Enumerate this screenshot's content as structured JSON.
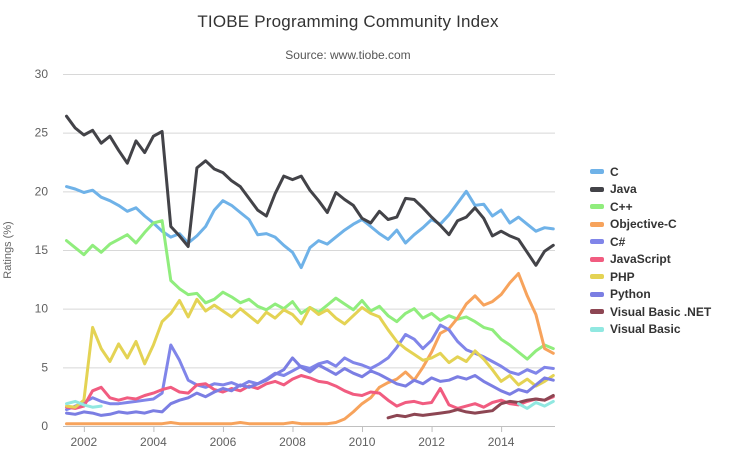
{
  "chart_data": {
    "type": "line",
    "title": "TIOBE Programming Community Index",
    "subtitle": "Source: www.tiobe.com",
    "xlabel": "",
    "ylabel": "Ratings (%)",
    "ylim": [
      0,
      30
    ],
    "xlim": [
      2001.4,
      2015.55
    ],
    "yticks": [
      0,
      5,
      10,
      15,
      20,
      25,
      30
    ],
    "xticks": [
      2002,
      2004,
      2006,
      2008,
      2010,
      2012,
      2014
    ],
    "grid": true,
    "legend_position": "right",
    "x": [
      2001.5,
      2001.75,
      2002,
      2002.25,
      2002.5,
      2002.75,
      2003,
      2003.25,
      2003.5,
      2003.75,
      2004,
      2004.25,
      2004.5,
      2004.75,
      2005,
      2005.25,
      2005.5,
      2005.75,
      2006,
      2006.25,
      2006.5,
      2006.75,
      2007,
      2007.25,
      2007.5,
      2007.75,
      2008,
      2008.25,
      2008.5,
      2008.75,
      2009,
      2009.25,
      2009.5,
      2009.75,
      2010,
      2010.25,
      2010.5,
      2010.75,
      2011,
      2011.25,
      2011.5,
      2011.75,
      2012,
      2012.25,
      2012.5,
      2012.75,
      2013,
      2013.25,
      2013.5,
      2013.75,
      2014,
      2014.25,
      2014.5,
      2014.75,
      2015,
      2015.25,
      2015.5
    ],
    "series": [
      {
        "name": "C",
        "color": "#6FB2E8",
        "values": [
          20.4,
          20.2,
          19.9,
          20.1,
          19.5,
          19.2,
          18.8,
          18.3,
          18.6,
          17.9,
          17.3,
          16.6,
          16.1,
          16.4,
          15.6,
          16.2,
          17.0,
          18.4,
          19.2,
          18.8,
          18.2,
          17.6,
          16.3,
          16.4,
          16.1,
          15.4,
          14.8,
          13.5,
          15.2,
          15.8,
          15.5,
          16.1,
          16.7,
          17.2,
          17.6,
          17.0,
          16.4,
          15.9,
          16.7,
          15.6,
          16.3,
          16.9,
          17.6,
          17.2,
          18.0,
          19.0,
          20.0,
          18.8,
          18.9,
          17.9,
          18.4,
          17.3,
          17.8,
          17.2,
          16.6,
          16.9,
          16.8
        ]
      },
      {
        "name": "Java",
        "color": "#434348",
        "values": [
          26.4,
          25.4,
          24.8,
          25.2,
          24.1,
          24.7,
          23.5,
          22.4,
          24.3,
          23.3,
          24.7,
          25.1,
          17.0,
          16.2,
          15.3,
          22.0,
          22.6,
          21.9,
          21.6,
          20.9,
          20.4,
          19.4,
          18.4,
          17.9,
          19.8,
          21.3,
          21.0,
          21.3,
          20.1,
          19.2,
          18.2,
          19.9,
          19.3,
          18.8,
          17.7,
          17.3,
          18.3,
          17.6,
          17.8,
          19.4,
          19.3,
          18.6,
          17.8,
          17.1,
          16.3,
          17.5,
          17.8,
          18.6,
          17.7,
          16.2,
          16.6,
          16.2,
          15.9,
          14.8,
          13.7,
          14.9,
          15.4
        ]
      },
      {
        "name": "C++",
        "color": "#90ED7D",
        "values": [
          15.8,
          15.2,
          14.6,
          15.4,
          14.8,
          15.5,
          15.9,
          16.3,
          15.6,
          16.5,
          17.3,
          17.5,
          12.4,
          11.7,
          11.2,
          11.3,
          10.5,
          10.8,
          11.4,
          11.0,
          10.5,
          10.8,
          10.2,
          9.9,
          10.4,
          10.0,
          10.6,
          9.6,
          10.1,
          9.7,
          10.3,
          10.9,
          10.4,
          9.9,
          10.7,
          9.8,
          10.2,
          9.4,
          8.9,
          9.6,
          10.0,
          9.2,
          9.6,
          9.0,
          9.4,
          9.1,
          9.3,
          8.9,
          8.4,
          8.2,
          7.4,
          6.9,
          6.3,
          5.7,
          6.4,
          6.9,
          6.6
        ]
      },
      {
        "name": "Objective-C",
        "color": "#F7A35C",
        "values": [
          0.2,
          0.2,
          0.2,
          0.2,
          0.2,
          0.2,
          0.2,
          0.2,
          0.2,
          0.2,
          0.2,
          0.2,
          0.3,
          0.2,
          0.2,
          0.2,
          0.2,
          0.2,
          0.2,
          0.2,
          0.3,
          0.2,
          0.2,
          0.2,
          0.2,
          0.2,
          0.3,
          0.2,
          0.2,
          0.2,
          0.2,
          0.3,
          0.6,
          1.2,
          1.9,
          2.4,
          3.3,
          3.7,
          4.0,
          4.6,
          3.9,
          5.0,
          6.3,
          7.9,
          8.3,
          9.2,
          10.4,
          11.1,
          10.3,
          10.6,
          11.2,
          12.2,
          13.0,
          11.1,
          9.5,
          6.6,
          6.2
        ]
      },
      {
        "name": "C#",
        "color": "#8085E9",
        "values": [
          1.4,
          1.7,
          2.0,
          2.4,
          2.1,
          1.9,
          1.9,
          2.0,
          2.1,
          2.2,
          2.3,
          2.8,
          6.9,
          5.6,
          3.9,
          3.5,
          3.3,
          3.6,
          3.5,
          3.7,
          3.4,
          3.8,
          3.6,
          4.0,
          4.5,
          4.3,
          4.7,
          5.1,
          4.9,
          5.3,
          5.5,
          5.1,
          5.8,
          5.4,
          5.2,
          4.9,
          5.3,
          5.8,
          6.7,
          7.8,
          7.4,
          6.6,
          7.3,
          8.6,
          8.2,
          7.2,
          6.5,
          6.2,
          5.9,
          5.5,
          5.1,
          4.6,
          4.4,
          4.8,
          4.5,
          5.0,
          4.9
        ]
      },
      {
        "name": "JavaScript",
        "color": "#F15C80",
        "values": [
          1.6,
          1.5,
          1.7,
          3.0,
          3.3,
          2.4,
          2.2,
          2.4,
          2.3,
          2.6,
          2.8,
          3.1,
          3.3,
          2.9,
          2.8,
          3.5,
          3.6,
          3.1,
          2.9,
          3.2,
          3.0,
          3.4,
          3.2,
          3.6,
          3.8,
          3.5,
          4.0,
          4.3,
          4.1,
          3.8,
          3.7,
          3.4,
          3.0,
          2.7,
          2.6,
          2.9,
          2.8,
          2.2,
          1.7,
          2.0,
          2.1,
          1.9,
          2.0,
          3.2,
          1.8,
          1.5,
          1.7,
          1.9,
          1.6,
          2.0,
          2.2,
          1.9,
          1.8,
          2.1,
          2.3,
          2.2,
          2.5
        ]
      },
      {
        "name": "PHP",
        "color": "#E4D354",
        "values": [
          1.7,
          1.6,
          2.2,
          8.4,
          6.6,
          5.5,
          7.0,
          5.8,
          7.2,
          5.3,
          6.9,
          8.9,
          9.6,
          10.7,
          9.3,
          10.8,
          9.8,
          10.3,
          9.8,
          9.3,
          10.0,
          9.4,
          8.8,
          9.7,
          9.2,
          9.9,
          9.5,
          8.7,
          10.1,
          9.5,
          9.9,
          9.2,
          8.7,
          9.4,
          10.1,
          9.6,
          9.3,
          8.2,
          7.2,
          6.6,
          6.1,
          5.6,
          5.8,
          6.2,
          5.4,
          5.9,
          5.5,
          6.4,
          5.7,
          4.8,
          3.8,
          4.3,
          3.5,
          4.0,
          3.4,
          3.8,
          4.3
        ]
      },
      {
        "name": "Python",
        "color": "#7B7EE3",
        "values": [
          1.1,
          1.0,
          1.2,
          1.1,
          0.9,
          1.0,
          1.2,
          1.1,
          1.2,
          1.1,
          1.3,
          1.2,
          1.9,
          2.2,
          2.4,
          2.8,
          2.5,
          2.9,
          3.2,
          3.0,
          3.5,
          3.3,
          3.6,
          3.9,
          4.4,
          4.8,
          5.8,
          5.0,
          4.6,
          5.2,
          4.8,
          4.4,
          4.9,
          4.5,
          4.2,
          4.7,
          4.4,
          4.0,
          3.6,
          3.4,
          3.9,
          3.6,
          4.1,
          3.8,
          3.9,
          4.2,
          4.0,
          4.3,
          3.8,
          3.4,
          3.0,
          2.7,
          3.1,
          2.9,
          3.5,
          4.1,
          3.9
        ]
      },
      {
        "name": "Visual Basic .NET",
        "color": "#8D4653",
        "values": [
          null,
          null,
          null,
          null,
          null,
          null,
          null,
          null,
          null,
          null,
          null,
          null,
          null,
          null,
          null,
          null,
          null,
          null,
          null,
          null,
          null,
          null,
          null,
          null,
          null,
          null,
          null,
          null,
          null,
          null,
          null,
          null,
          null,
          null,
          null,
          null,
          null,
          0.7,
          0.9,
          0.8,
          1.0,
          0.9,
          1.0,
          1.1,
          1.2,
          1.4,
          1.2,
          1.1,
          1.2,
          1.3,
          1.9,
          2.1,
          2.0,
          2.2,
          2.3,
          2.2,
          2.6
        ]
      },
      {
        "name": "Visual Basic",
        "color": "#91E8E1",
        "values": [
          1.9,
          2.1,
          1.8,
          1.6,
          1.7,
          null,
          null,
          null,
          null,
          null,
          null,
          null,
          null,
          null,
          null,
          null,
          null,
          null,
          null,
          null,
          null,
          null,
          null,
          null,
          null,
          null,
          null,
          null,
          null,
          null,
          null,
          null,
          null,
          null,
          null,
          null,
          null,
          null,
          null,
          null,
          null,
          null,
          null,
          null,
          null,
          null,
          null,
          null,
          null,
          null,
          null,
          null,
          1.9,
          1.5,
          2.0,
          1.7,
          2.1
        ]
      }
    ]
  }
}
